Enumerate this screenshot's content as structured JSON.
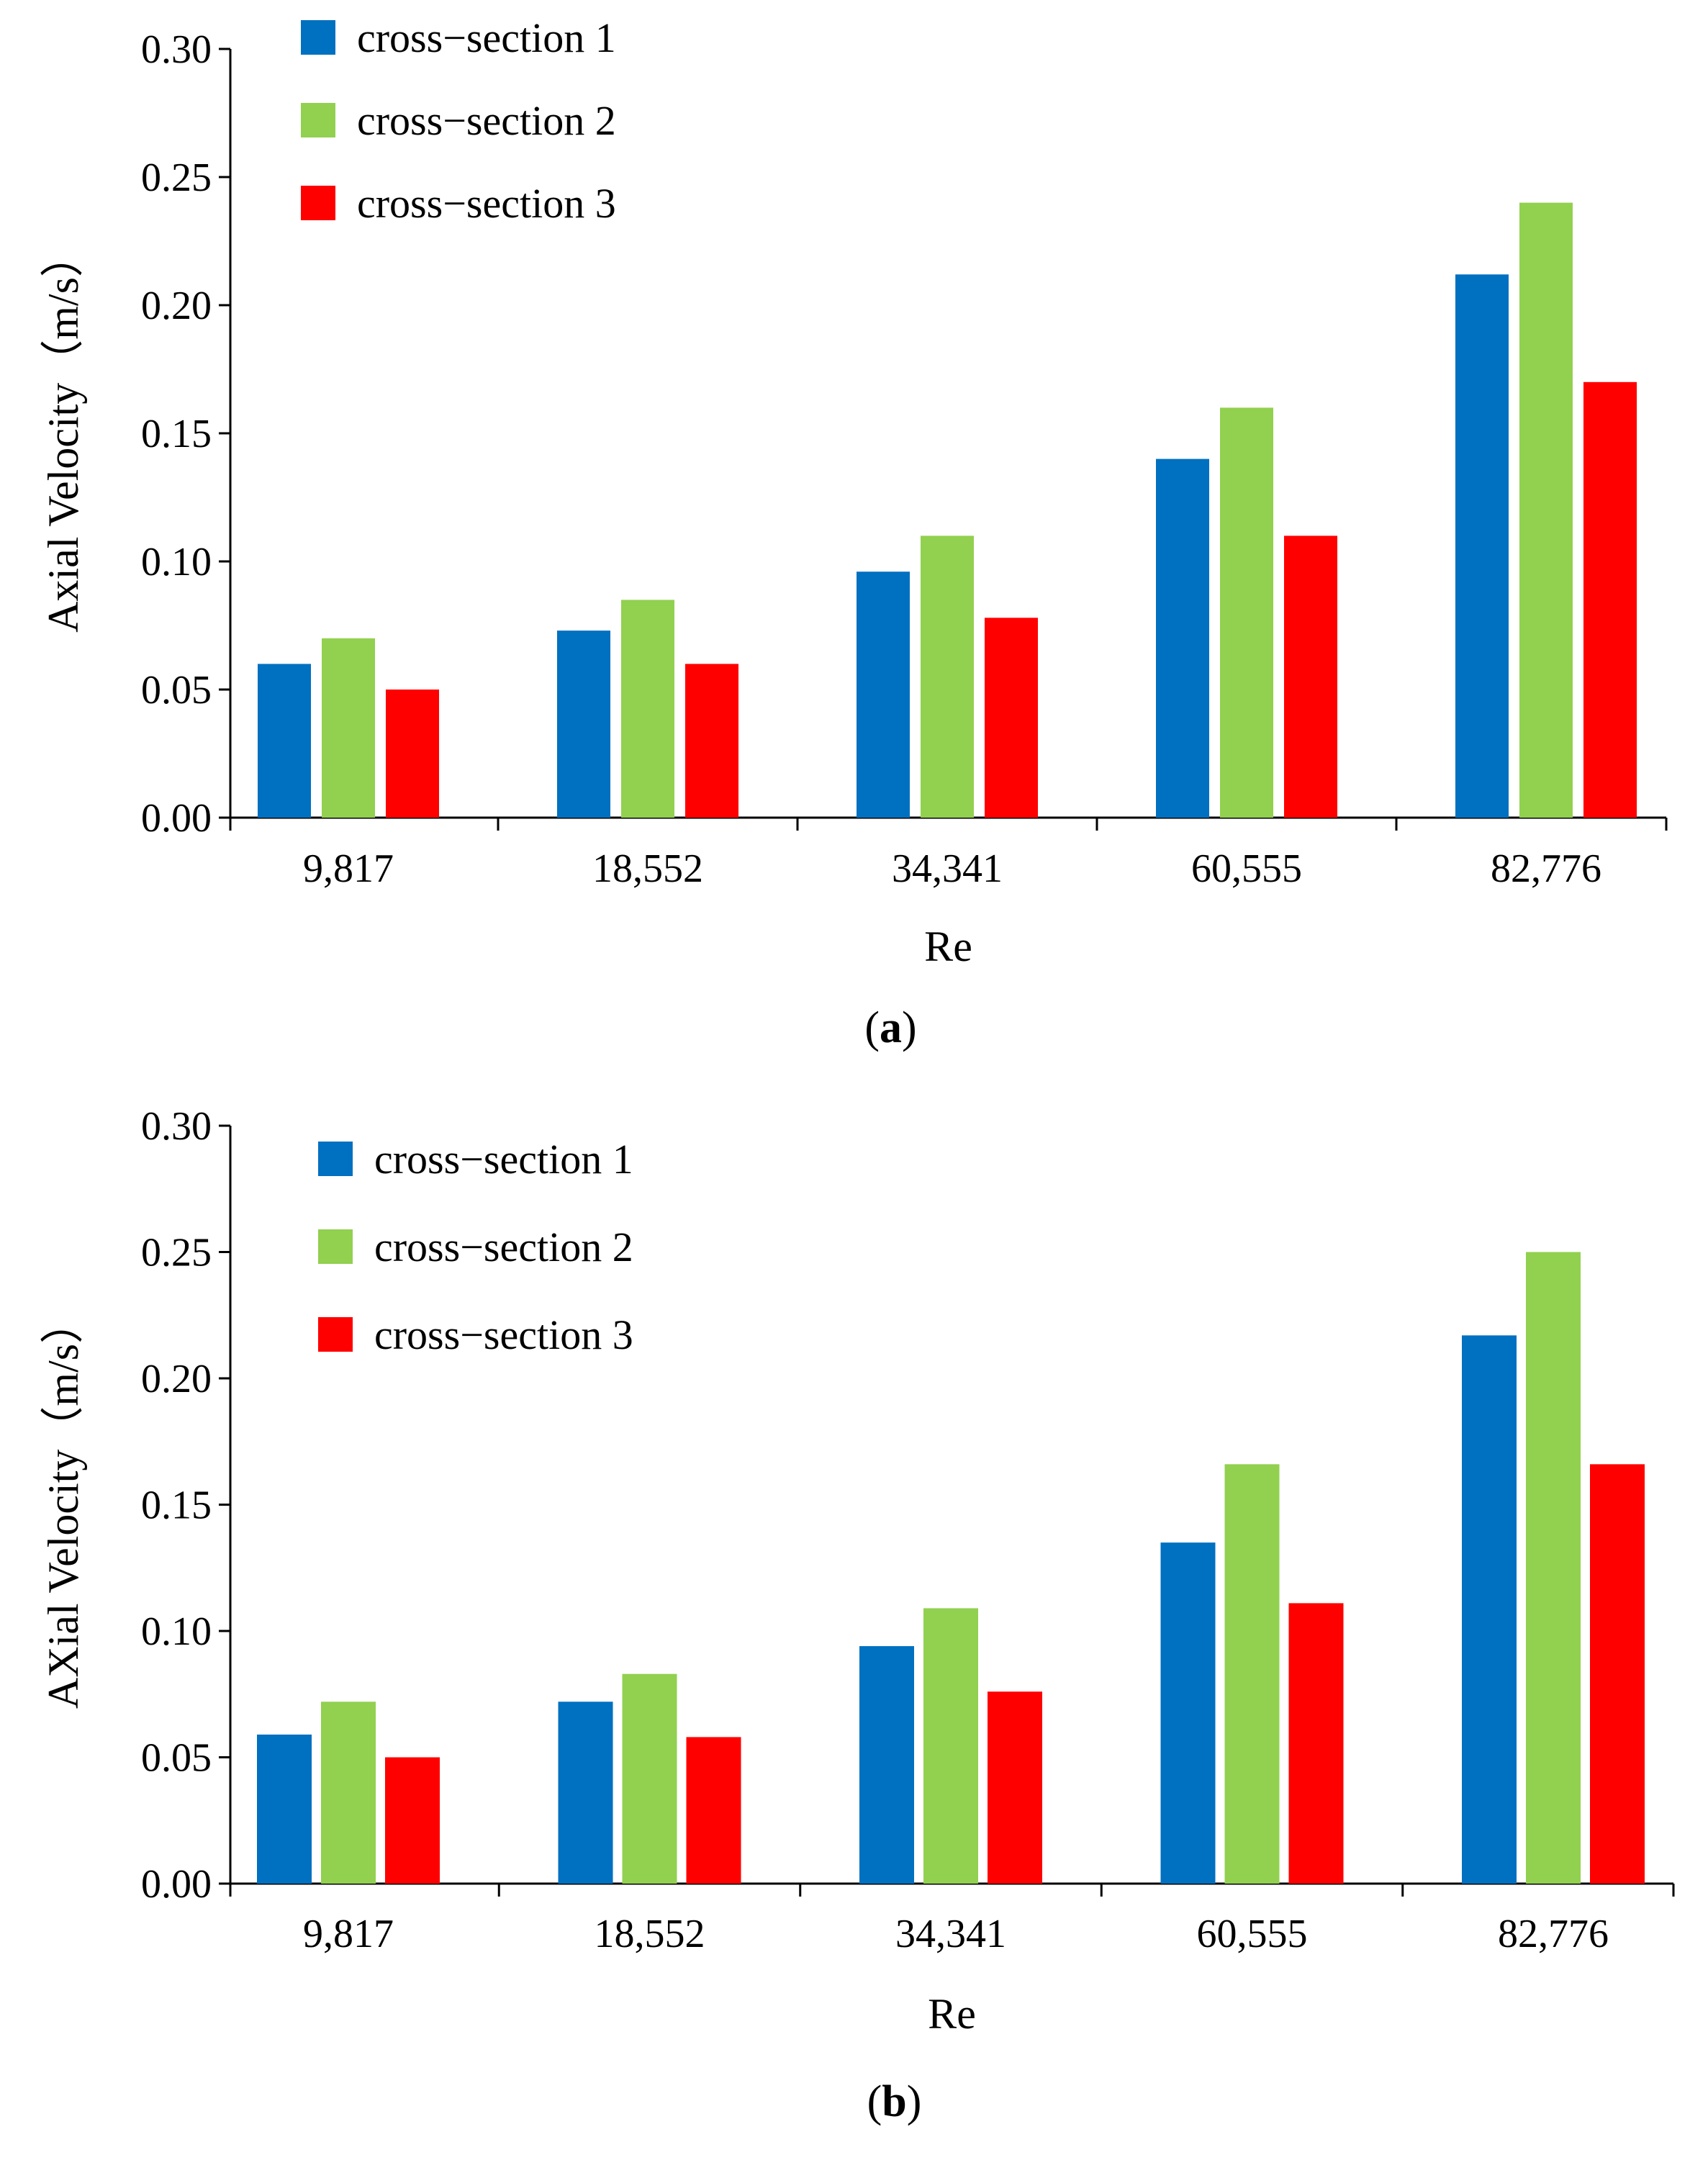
{
  "chart_data": [
    {
      "type": "bar",
      "caption_letter": "a",
      "categories": [
        "9,817",
        "18,552",
        "34,341",
        "60,555",
        "82,776"
      ],
      "series": [
        {
          "name": "cross−section 1",
          "color": "#0070C0",
          "values": [
            0.06,
            0.073,
            0.096,
            0.14,
            0.212
          ]
        },
        {
          "name": "cross−section 2",
          "color": "#92D050",
          "values": [
            0.07,
            0.085,
            0.11,
            0.16,
            0.24
          ]
        },
        {
          "name": "cross−section 3",
          "color": "#FF0000",
          "values": [
            0.05,
            0.06,
            0.078,
            0.11,
            0.17
          ]
        }
      ],
      "xlabel": "Re",
      "ylabel": "Axial Velocity（m/s）",
      "ylim": [
        0,
        0.3
      ],
      "yticks": [
        "0.00",
        "0.05",
        "0.10",
        "0.15",
        "0.20",
        "0.25",
        "0.30"
      ],
      "legend_position": "top-left"
    },
    {
      "type": "bar",
      "caption_letter": "b",
      "categories": [
        "9,817",
        "18,552",
        "34,341",
        "60,555",
        "82,776"
      ],
      "series": [
        {
          "name": "cross−section 1",
          "color": "#0070C0",
          "values": [
            0.059,
            0.072,
            0.094,
            0.135,
            0.217
          ]
        },
        {
          "name": "cross−section 2",
          "color": "#92D050",
          "values": [
            0.072,
            0.083,
            0.109,
            0.166,
            0.25
          ]
        },
        {
          "name": "cross−section 3",
          "color": "#FF0000",
          "values": [
            0.05,
            0.058,
            0.076,
            0.111,
            0.166
          ]
        }
      ],
      "xlabel": "Re",
      "ylabel": "AXial Velocity（m/s）",
      "ylim": [
        0,
        0.3
      ],
      "yticks": [
        "0.00",
        "0.05",
        "0.10",
        "0.15",
        "0.20",
        "0.25",
        "0.30"
      ],
      "legend_position": "top-left"
    }
  ]
}
